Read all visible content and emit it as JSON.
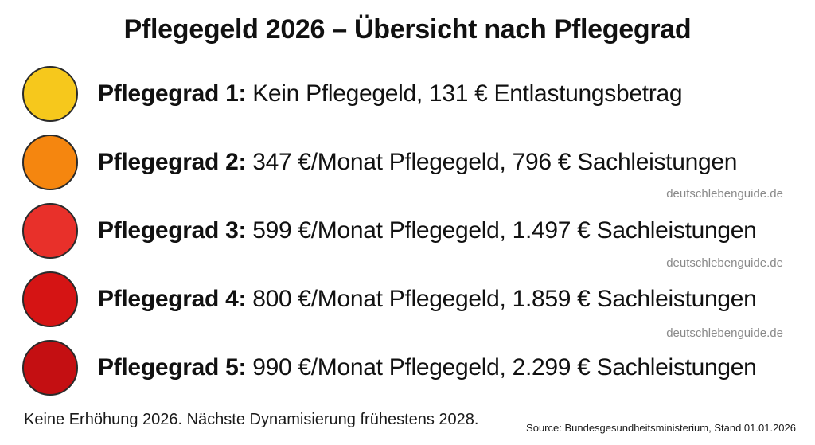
{
  "title": "Pflegegeld 2026 – Übersicht nach Pflegegrad",
  "rows": [
    {
      "label": "Pflegegrad 1:",
      "text": "Kein Pflegegeld, 131 € Entlastungsbetrag",
      "color": "#f6c81c"
    },
    {
      "label": "Pflegegrad 2:",
      "text": "347 €/Monat Pflegegeld, 796 € Sachleistungen",
      "color": "#f5860f"
    },
    {
      "label": "Pflegegrad 3:",
      "text": "599 €/Monat Pflegegeld, 1.497 € Sachleistungen",
      "color": "#e8302a"
    },
    {
      "label": "Pflegegrad 4:",
      "text": "800 €/Monat Pflegegeld, 1.859 € Sachleistungen",
      "color": "#d51414"
    },
    {
      "label": "Pflegegrad 5:",
      "text": "990 €/Monat Pflegegeld, 2.299 € Sachleistungen",
      "color": "#c40f12"
    }
  ],
  "watermarks": [
    "deutschlebenguide.de",
    "deutschlebenguide.de",
    "deutschlebenguide.de"
  ],
  "note": "Keine Erhöhung 2026. Nächste Dynamisierung frühestens 2028.",
  "source": "Source: Bundesgesundheitsministerium, Stand 01.01.2026"
}
